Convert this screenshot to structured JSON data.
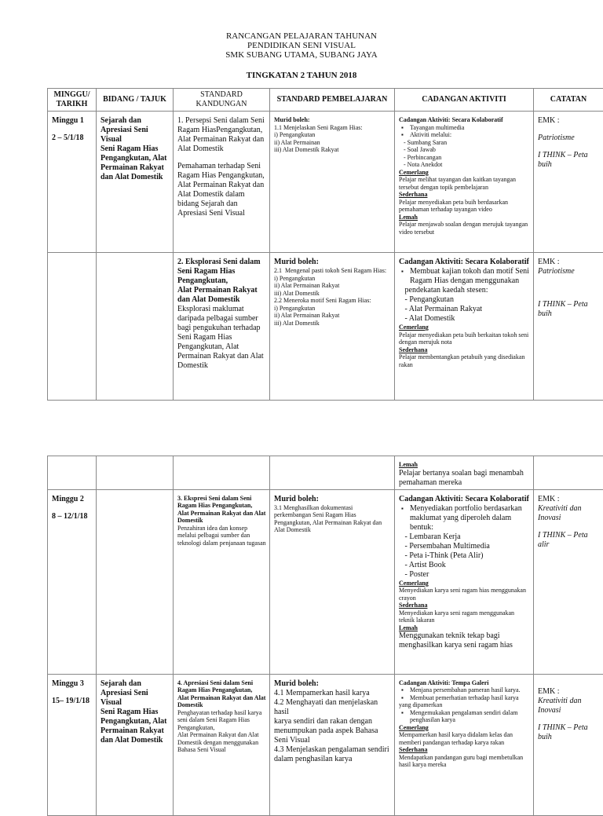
{
  "header": {
    "line1": "RANCANGAN PELAJARAN TAHUNAN",
    "line2": "PENDIDIKAN SENI VISUAL",
    "line3": "SMK SUBANG UTAMA, SUBANG JAYA",
    "line4": "TINGKATAN 2 TAHUN 2018"
  },
  "columns": [
    "MINGGU/ TARIKH",
    "BIDANG / TAJUK",
    "STANDARD KANDUNGAN",
    "STANDARD PEMBELAJARAN",
    "CADANGAN AKTIVITI",
    "CATATAN"
  ],
  "table1": [
    [
      [
        {
          "t": "Minggu 1",
          "c": "b"
        },
        {
          "t": "",
          "c": "gap"
        },
        {
          "t": "2 – 5/1/18",
          "c": "b"
        }
      ],
      [
        {
          "t": "Sejarah dan Apresiasi Seni Visual",
          "c": "b"
        },
        {
          "t": "Seni Ragam Hias Pengangkutan, Alat Permainan Rakyat dan Alat Domestik",
          "c": "b"
        }
      ],
      [
        {
          "t": "1. Persepsi Seni dalam Seni Ragam HiasPengangkutan, Alat Permainan Rakyat dan Alat Domestik",
          "c": ""
        },
        {
          "t": "",
          "c": "gap"
        },
        {
          "t": "Pemahaman terhadap Seni Ragam Hias Pengangkutan, Alat Permainan Rakyat dan Alat Domestik dalam bidang Sejarah dan Apresiasi Seni Visual",
          "c": ""
        }
      ],
      [
        {
          "t": "Murid boleh:",
          "c": "b s"
        },
        {
          "t": "1.1 Menjelaskan Seni Ragam Hias:",
          "c": "s"
        },
        {
          "t": "i) Pengangkutan",
          "c": "s"
        },
        {
          "t": "ii) Alat Permainan",
          "c": "s"
        },
        {
          "t": "iii) Alat Domestik Rakyat",
          "c": "s"
        }
      ],
      [
        {
          "t": "Cadangan Aktiviti: Secara Kolaboratif",
          "c": "b s"
        },
        {
          "t": "Tayangan multimedia",
          "c": "s li"
        },
        {
          "t": "Aktiviti melalui:",
          "c": "s li"
        },
        {
          "t": "   - Sumbang Saran",
          "c": "s"
        },
        {
          "t": "   - Soal Jawab",
          "c": "s"
        },
        {
          "t": "   - Perbincangan",
          "c": "s"
        },
        {
          "t": "   - Nota Anekdot",
          "c": "s"
        },
        {
          "t": "Cemerlang",
          "c": "u"
        },
        {
          "t": "Pelajar melihat tayangan dan kaitkan tayangan tersebut dengan topik pembelajaran",
          "c": "s"
        },
        {
          "t": "Sederhana",
          "c": "u"
        },
        {
          "t": "Pelajar menyediakan peta buih berdasarkan pemahaman terhadap tayangan video",
          "c": "s"
        },
        {
          "t": "Lemah",
          "c": "u"
        },
        {
          "t": "Pelajar menjawab soalan dengan merujuk tayangan video tersebut",
          "c": "s"
        }
      ],
      [
        {
          "t": "EMK :",
          "c": ""
        },
        {
          "t": "",
          "c": "gap"
        },
        {
          "t": "Patriotisme",
          "c": "i"
        },
        {
          "t": "",
          "c": "gap"
        },
        {
          "t": "I THINK – Peta buih",
          "c": "i"
        }
      ]
    ],
    [
      [],
      [],
      [
        {
          "t": "2. Eksplorasi Seni dalam",
          "c": "b"
        },
        {
          "t": "Seni Ragam Hias Pengangkutan,",
          "c": "b"
        },
        {
          "t": "Alat Permainan Rakyat dan Alat Domestik",
          "c": "b"
        },
        {
          "t": "Eksplorasi maklumat daripada pelbagai sumber bagi pengukuhan terhadap Seni Ragam Hias Pengangkutan, Alat Permainan Rakyat dan Alat Domestik",
          "c": ""
        }
      ],
      [
        {
          "t": "Murid boleh:",
          "c": "b"
        },
        {
          "t": "2.1  Mengenal pasti tokoh Seni Ragam Hias:",
          "c": "s"
        },
        {
          "t": "i) Pengangkutan",
          "c": "s"
        },
        {
          "t": "ii) Alat Permainan Rakyat",
          "c": "s"
        },
        {
          "t": "iii) Alat Domestik",
          "c": "s"
        },
        {
          "t": "2.2 Meneroka motif Seni Ragam Hias:",
          "c": "s"
        },
        {
          "t": "i) Pengangkutan",
          "c": "s"
        },
        {
          "t": "ii) Alat Permainan Rakyat",
          "c": "s"
        },
        {
          "t": "iii) Alat Domestik",
          "c": "s"
        }
      ],
      [
        {
          "t": "Cadangan Aktiviti: Secara Kolaboratif",
          "c": "b"
        },
        {
          "t": "Membuat kajian tokoh dan motif Seni Ragam Hias dengan menggunakan",
          "c": "li"
        },
        {
          "t": "   pendekatan kaedah stesen:",
          "c": ""
        },
        {
          "t": "   - Pengangkutan",
          "c": ""
        },
        {
          "t": "   - Alat Permainan Rakyat",
          "c": ""
        },
        {
          "t": "   - Alat Domestik",
          "c": ""
        },
        {
          "t": "Cemerlang",
          "c": "u"
        },
        {
          "t": "Pelajar menyediakan peta buih berkaitan tokoh seni dengan merujuk nota",
          "c": "s"
        },
        {
          "t": "Sederhana",
          "c": "u"
        },
        {
          "t": "Pelajar membentangkan petabuih yang disediakan rakan",
          "c": "s"
        }
      ],
      [
        {
          "t": "EMK :",
          "c": ""
        },
        {
          "t": "Patriotisme",
          "c": "i"
        },
        {
          "t": "",
          "c": "gap"
        },
        {
          "t": "",
          "c": "gap"
        },
        {
          "t": "",
          "c": "gap"
        },
        {
          "t": "I THINK – Peta buih",
          "c": "i"
        }
      ]
    ]
  ],
  "table2": [
    [
      [],
      [],
      [],
      [],
      [
        {
          "t": "Lemah",
          "c": "u"
        },
        {
          "t": "Pelajar bertanya soalan bagi menambah pemahaman mereka",
          "c": ""
        }
      ],
      []
    ],
    [
      [
        {
          "t": "Minggu 2",
          "c": "b"
        },
        {
          "t": "",
          "c": "gap"
        },
        {
          "t": "8 – 12/1/18",
          "c": "b"
        }
      ],
      [],
      [
        {
          "t": "3. Ekspresi Seni dalam Seni Ragam Hias Pengangkutan,",
          "c": "b s"
        },
        {
          "t": "Alat Permainan Rakyat dan Alat Domestik",
          "c": "b s"
        },
        {
          "t": "Penzahiran idea dan konsep melalui pelbagai sumber dan teknologi dalam penjanaan tugasan",
          "c": "s"
        }
      ],
      [
        {
          "t": "Murid boleh:",
          "c": "b"
        },
        {
          "t": "3.1 Menghasilkan dokumentasi perkembangan Seni Ragam Hias Pengangkutan, Alat Permainan Rakyat dan Alat Domestik",
          "c": "s"
        }
      ],
      [
        {
          "t": "Cadangan Aktiviti: Secara Kolaboratif",
          "c": "b"
        },
        {
          "t": "Menyediakan portfolio berdasarkan maklumat yang diperoleh dalam bentuk:",
          "c": "li"
        },
        {
          "t": "   - Lembaran Kerja",
          "c": ""
        },
        {
          "t": "   - Persembahan Multimedia",
          "c": ""
        },
        {
          "t": "   - Peta i-Think (Peta Alir)",
          "c": ""
        },
        {
          "t": "   - Artist Book",
          "c": ""
        },
        {
          "t": "   - Poster",
          "c": ""
        },
        {
          "t": "Cemerlang",
          "c": "u"
        },
        {
          "t": "Menyediakan karya seni ragam hias menggunakan crayon",
          "c": "s"
        },
        {
          "t": "Sederhana",
          "c": "u"
        },
        {
          "t": "Menyediakan karya seni ragam menggunakan teknik lakaran",
          "c": "s"
        },
        {
          "t": "Lemah",
          "c": "u"
        },
        {
          "t": "Menggunakan teknik tekap bagi menghasilkan karya seni ragam hias",
          "c": ""
        }
      ],
      [
        {
          "t": "EMK :",
          "c": ""
        },
        {
          "t": "Kreativiti dan Inovasi",
          "c": "i"
        },
        {
          "t": "",
          "c": "gap"
        },
        {
          "t": "I THINK – Peta alir",
          "c": "i"
        }
      ]
    ],
    [
      [
        {
          "t": "Minggu 3",
          "c": "b"
        },
        {
          "t": "",
          "c": "gap"
        },
        {
          "t": "15– 19/1/18",
          "c": "b"
        }
      ],
      [
        {
          "t": "Sejarah dan Apresiasi Seni Visual",
          "c": "b"
        },
        {
          "t": "Seni Ragam Hias Pengangkutan, Alat Permainan Rakyat dan Alat Domestik",
          "c": "b"
        }
      ],
      [
        {
          "t": "4. Apresiasi Seni dalam Seni Ragam Hias Pengangkutan,",
          "c": "b s"
        },
        {
          "t": "Alat Permainan Rakyat dan Alat Domestik",
          "c": "b s"
        },
        {
          "t": "Penghayatan terhadap hasil karya seni dalam Seni Ragam Hias Pengangkutan,",
          "c": "s"
        },
        {
          "t": "Alat Permainan Rakyat dan Alat Domestik dengan menggunakan Bahasa Seni Visual",
          "c": "s"
        }
      ],
      [
        {
          "t": "Murid boleh:",
          "c": "b"
        },
        {
          "t": "4.1 Mempamerkan hasil karya",
          "c": ""
        },
        {
          "t": "4.2 Menghayati dan menjelaskan hasil",
          "c": ""
        },
        {
          "t": "karya sendiri dan rakan dengan menumpukan pada aspek Bahasa Seni Visual",
          "c": ""
        },
        {
          "t": "4.3 Menjelaskan pengalaman sendiri",
          "c": ""
        },
        {
          "t": "dalam penghasilan karya",
          "c": ""
        }
      ],
      [
        {
          "t": "Cadangan Aktiviti: Tempa Galeri",
          "c": "b s"
        },
        {
          "t": "Menjana persembahan pameran hasil karya.",
          "c": "s li"
        },
        {
          "t": "Membuat pemerhatian terhadap hasil karya",
          "c": "s li"
        },
        {
          "t": "yang dipamerkan",
          "c": "s"
        },
        {
          "t": "Mengemukakan pengalaman sendiri dalam penghasilan karya",
          "c": "s li"
        },
        {
          "t": "Cemerlang",
          "c": "u"
        },
        {
          "t": "Mempamerkan hasil karya didalam kelas dan memberi pandangan terhadap karya rakan",
          "c": "s"
        },
        {
          "t": "Sederhana",
          "c": "u"
        },
        {
          "t": "Mendapatkan pandangan guru bagi membetulkan hasil karya mereka",
          "c": "s"
        }
      ],
      [
        {
          "t": "",
          "c": "gap"
        },
        {
          "t": "EMK :",
          "c": ""
        },
        {
          "t": "Kreativiti dan Inovasi",
          "c": "i"
        },
        {
          "t": "",
          "c": "gap"
        },
        {
          "t": "I THINK – Peta buih",
          "c": "i"
        }
      ]
    ]
  ]
}
